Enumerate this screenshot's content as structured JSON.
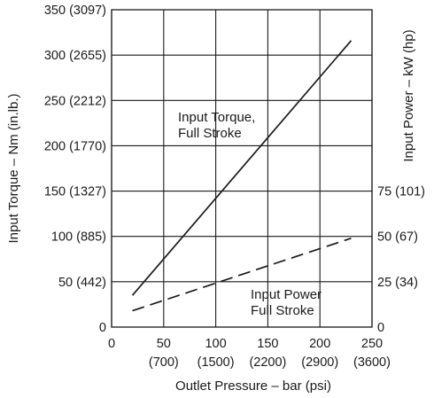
{
  "chart_data": {
    "type": "line",
    "xlabel": "Outlet Pressure – bar (psi)",
    "ylabel_left": "Input Torque – Nm (in.lb.)",
    "ylabel_right": "Input Power – kW (hp)",
    "xlim": [
      0,
      250
    ],
    "ylim_left": [
      0,
      350
    ],
    "ylim_right": [
      0,
      175
    ],
    "grid": true,
    "x_ticks": [
      {
        "value": 0,
        "label": "0",
        "sublabel": ""
      },
      {
        "value": 50,
        "label": "50",
        "sublabel": "(700)"
      },
      {
        "value": 100,
        "label": "100",
        "sublabel": "(1500)"
      },
      {
        "value": 150,
        "label": "150",
        "sublabel": "(2200)"
      },
      {
        "value": 200,
        "label": "200",
        "sublabel": "(2900)"
      },
      {
        "value": 250,
        "label": "250",
        "sublabel": "(3600)"
      }
    ],
    "y_ticks_left": [
      {
        "value": 0,
        "label": "0"
      },
      {
        "value": 50,
        "label": "50 (442)"
      },
      {
        "value": 100,
        "label": "100 (885)"
      },
      {
        "value": 150,
        "label": "150 (1327)"
      },
      {
        "value": 200,
        "label": "200 (1770)"
      },
      {
        "value": 250,
        "label": "250 (2212)"
      },
      {
        "value": 300,
        "label": "300 (2655)"
      },
      {
        "value": 350,
        "label": "350 (3097)"
      }
    ],
    "y_ticks_right": [
      {
        "value": 0,
        "label": "0"
      },
      {
        "value": 25,
        "label": "25 (34)"
      },
      {
        "value": 50,
        "label": "50 (67)"
      },
      {
        "value": 75,
        "label": "75 (101)"
      }
    ],
    "series": [
      {
        "name": "Input Torque, Full Stroke",
        "label_lines": [
          "Input Torque,",
          "Full Stroke"
        ],
        "axis": "left",
        "style": "solid",
        "color": "#1a1a1a",
        "x": [
          20,
          230
        ],
        "y": [
          35,
          316
        ]
      },
      {
        "name": "Input Power Full Stroke",
        "label_lines": [
          "Input Power",
          "Full Stroke"
        ],
        "axis": "right",
        "style": "dashed",
        "color": "#1a1a1a",
        "x": [
          20,
          230
        ],
        "y": [
          9,
          49
        ]
      }
    ]
  }
}
